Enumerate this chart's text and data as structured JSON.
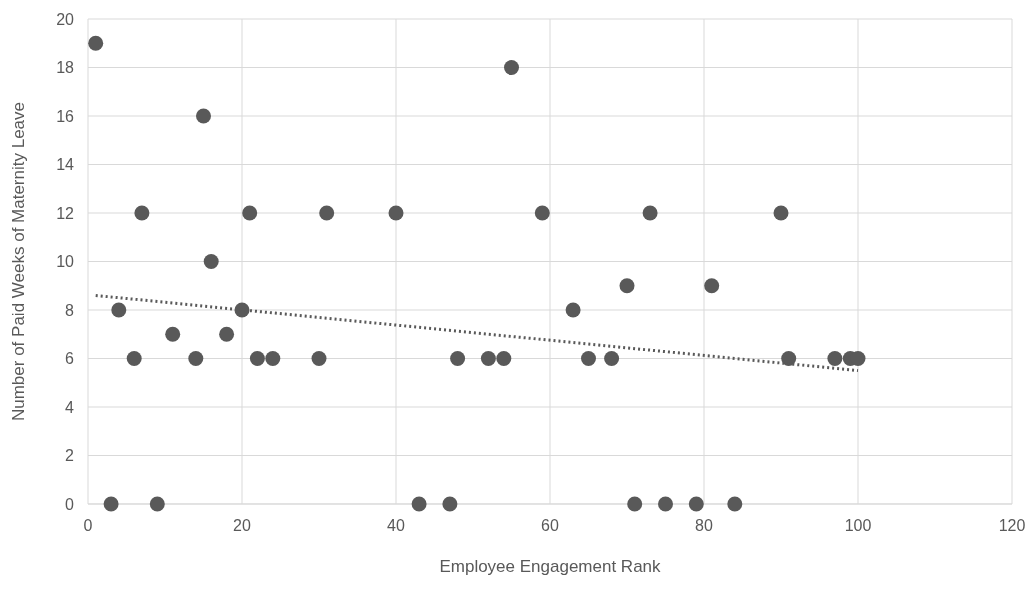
{
  "chart_data": {
    "type": "scatter",
    "xlabel": "Employee Engagement Rank",
    "ylabel": "Number of Paid Weeks of Maternity Leave",
    "xlim": [
      0,
      120
    ],
    "xticks": [
      0,
      20,
      40,
      60,
      80,
      100,
      120
    ],
    "ylim": [
      0,
      20
    ],
    "yticks": [
      0,
      2,
      4,
      6,
      8,
      10,
      12,
      14,
      16,
      18,
      20
    ],
    "grid": true,
    "marker": "circle",
    "series": [
      {
        "color": "#595959",
        "x": [
          1,
          3,
          4,
          6,
          7,
          9,
          11,
          14,
          15,
          16,
          18,
          20,
          21,
          22,
          24,
          30,
          31,
          40,
          43,
          47,
          48,
          52,
          54,
          55,
          59,
          63,
          65,
          68,
          70,
          71,
          73,
          75,
          79,
          81,
          84,
          90,
          91,
          97,
          99,
          100
        ],
        "values": [
          19,
          0,
          8,
          6,
          12,
          0,
          7,
          6,
          16,
          10,
          7,
          8,
          12,
          6,
          6,
          6,
          12,
          12,
          0,
          0,
          6,
          6,
          6,
          18,
          12,
          8,
          6,
          6,
          9,
          0,
          12,
          0,
          0,
          9,
          0,
          12,
          6,
          6,
          6,
          6
        ]
      },
      {
        "type": "line",
        "color": "#595959",
        "line_style": "dotted",
        "marker": "none",
        "x": [
          1,
          100
        ],
        "values": [
          8.6,
          5.5
        ]
      }
    ]
  }
}
